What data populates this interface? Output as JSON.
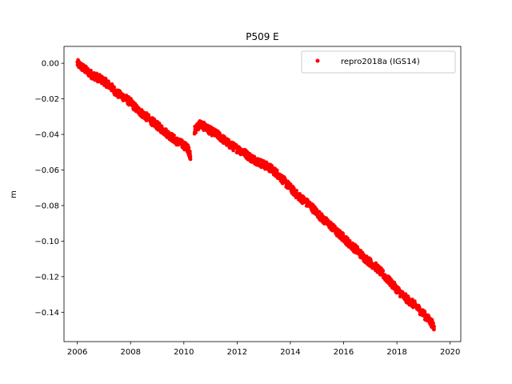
{
  "chart_data": {
    "type": "scatter",
    "title": "P509 E",
    "xlabel": "",
    "ylabel": "m",
    "xlim": [
      2005.5,
      2020.4
    ],
    "ylim": [
      -0.1565,
      0.0095
    ],
    "xticks": [
      2006,
      2008,
      2010,
      2012,
      2014,
      2016,
      2018,
      2020
    ],
    "xtick_labels": [
      "2006",
      "2008",
      "2010",
      "2012",
      "2014",
      "2016",
      "2018",
      "2020"
    ],
    "yticks": [
      0.0,
      -0.02,
      -0.04,
      -0.06,
      -0.08,
      -0.1,
      -0.12,
      -0.14
    ],
    "ytick_labels": [
      "0.00",
      "−0.02",
      "−0.04",
      "−0.06",
      "−0.08",
      "−0.10",
      "−0.12",
      "−0.14"
    ],
    "grid": false,
    "legend_position": "top-right",
    "series": [
      {
        "name": "repro2018a (IGS14)",
        "color": "#ff0000",
        "marker": "circle",
        "x": [
          2006.0,
          2006.25,
          2006.5,
          2006.75,
          2007.0,
          2007.25,
          2007.5,
          2007.75,
          2008.0,
          2008.25,
          2008.5,
          2008.75,
          2009.0,
          2009.25,
          2009.5,
          2009.75,
          2010.0,
          2010.15,
          2010.25,
          2010.4,
          2010.6,
          2010.8,
          2011.0,
          2011.25,
          2011.5,
          2011.75,
          2012.0,
          2012.25,
          2012.5,
          2012.75,
          2013.0,
          2013.25,
          2013.5,
          2013.75,
          2014.0,
          2014.25,
          2014.5,
          2014.75,
          2015.0,
          2015.25,
          2015.5,
          2015.75,
          2016.0,
          2016.25,
          2016.5,
          2016.75,
          2017.0,
          2017.25,
          2017.5,
          2017.75,
          2018.0,
          2018.25,
          2018.5,
          2018.75,
          2019.0,
          2019.25,
          2019.4
        ],
        "y": [
          0.0,
          -0.003,
          -0.006,
          -0.008,
          -0.01,
          -0.013,
          -0.017,
          -0.019,
          -0.022,
          -0.026,
          -0.029,
          -0.032,
          -0.035,
          -0.038,
          -0.041,
          -0.044,
          -0.046,
          -0.048,
          -0.052,
          -0.038,
          -0.034,
          -0.036,
          -0.038,
          -0.04,
          -0.043,
          -0.046,
          -0.048,
          -0.05,
          -0.053,
          -0.055,
          -0.057,
          -0.059,
          -0.062,
          -0.066,
          -0.07,
          -0.074,
          -0.077,
          -0.08,
          -0.084,
          -0.088,
          -0.091,
          -0.095,
          -0.098,
          -0.102,
          -0.105,
          -0.109,
          -0.112,
          -0.115,
          -0.119,
          -0.123,
          -0.127,
          -0.131,
          -0.134,
          -0.137,
          -0.141,
          -0.145,
          -0.148
        ]
      }
    ]
  }
}
